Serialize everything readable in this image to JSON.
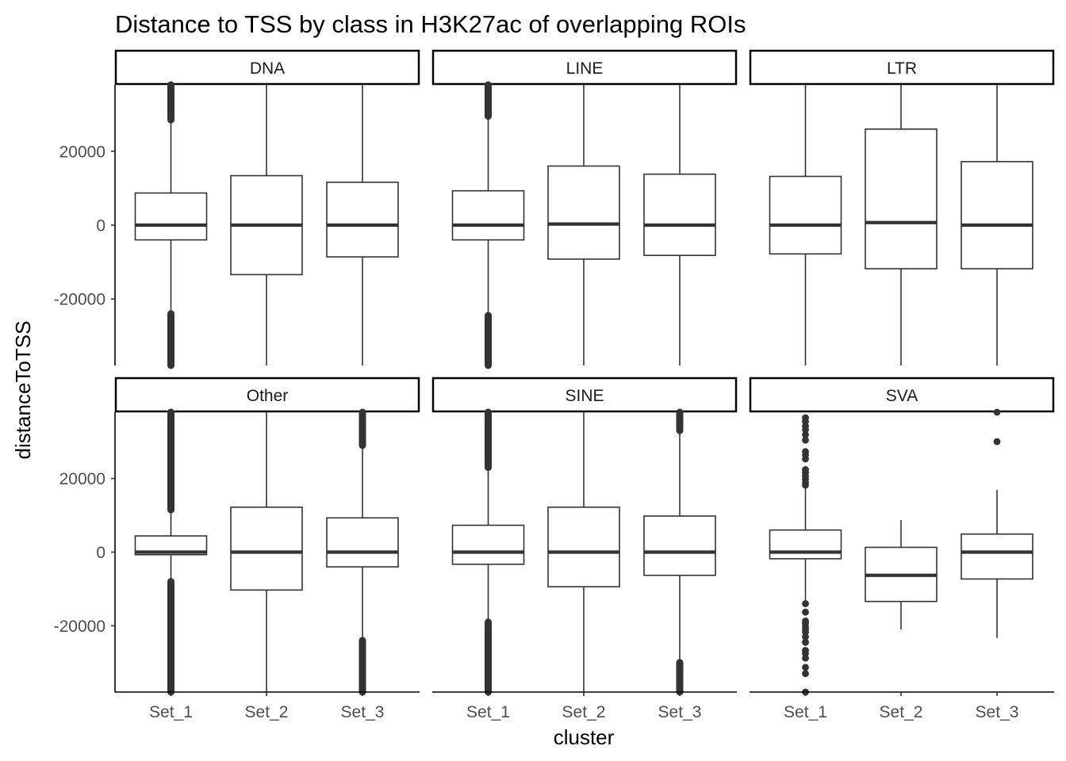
{
  "chart_data": {
    "type": "boxplot",
    "title": "Distance to TSS by class in H3K27ac of overlapping ROIs",
    "xlabel": "cluster",
    "ylabel": "distanceToTSS",
    "categories": [
      "Set_1",
      "Set_2",
      "Set_3"
    ],
    "ylim": [
      -38000,
      38000
    ],
    "yticks": [
      -20000,
      0,
      20000
    ],
    "ytick_labels": [
      "-20000",
      "0",
      "20000"
    ],
    "layout": "2 rows x 3 facets",
    "colors": {
      "box_line": "#333333",
      "outlier": "#333333",
      "strip_border": "#000000",
      "axis": "#000000"
    },
    "facets": [
      {
        "name": "DNA",
        "boxes": [
          {
            "cluster": "Set_1",
            "q1": -4000,
            "median": 0,
            "q3": 8700,
            "whisker_low": -24000,
            "whisker_high": 28500,
            "outlier_bands": [
              [
                -38000,
                -24000
              ],
              [
                28500,
                38000
              ]
            ],
            "outliers": []
          },
          {
            "cluster": "Set_2",
            "q1": -13400,
            "median": 0,
            "q3": 13400,
            "whisker_low": -38000,
            "whisker_high": 38000,
            "outlier_bands": [],
            "outliers": []
          },
          {
            "cluster": "Set_3",
            "q1": -8600,
            "median": 0,
            "q3": 11600,
            "whisker_low": -38000,
            "whisker_high": 38000,
            "outlier_bands": [],
            "outliers": []
          }
        ]
      },
      {
        "name": "LINE",
        "boxes": [
          {
            "cluster": "Set_1",
            "q1": -4000,
            "median": 0,
            "q3": 9300,
            "whisker_low": -24500,
            "whisker_high": 29500,
            "outlier_bands": [
              [
                -38000,
                -24500
              ],
              [
                29500,
                38000
              ]
            ],
            "outliers": []
          },
          {
            "cluster": "Set_2",
            "q1": -9200,
            "median": 300,
            "q3": 16000,
            "whisker_low": -38000,
            "whisker_high": 38000,
            "outlier_bands": [],
            "outliers": []
          },
          {
            "cluster": "Set_3",
            "q1": -8200,
            "median": 0,
            "q3": 13800,
            "whisker_low": -38000,
            "whisker_high": 38000,
            "outlier_bands": [],
            "outliers": []
          }
        ]
      },
      {
        "name": "LTR",
        "boxes": [
          {
            "cluster": "Set_1",
            "q1": -7800,
            "median": 0,
            "q3": 13200,
            "whisker_low": -38000,
            "whisker_high": 38000,
            "outlier_bands": [],
            "outliers": []
          },
          {
            "cluster": "Set_2",
            "q1": -11800,
            "median": 700,
            "q3": 26000,
            "whisker_low": -38000,
            "whisker_high": 38000,
            "outlier_bands": [],
            "outliers": []
          },
          {
            "cluster": "Set_3",
            "q1": -11800,
            "median": 0,
            "q3": 17200,
            "whisker_low": -38000,
            "whisker_high": 38000,
            "outlier_bands": [],
            "outliers": []
          }
        ]
      },
      {
        "name": "Other",
        "boxes": [
          {
            "cluster": "Set_1",
            "q1": -700,
            "median": 0,
            "q3": 4400,
            "whisker_low": -8000,
            "whisker_high": 11500,
            "outlier_bands": [
              [
                -38000,
                -8000
              ],
              [
                11500,
                38000
              ]
            ],
            "outliers": []
          },
          {
            "cluster": "Set_2",
            "q1": -10300,
            "median": 0,
            "q3": 12200,
            "whisker_low": -38000,
            "whisker_high": 38000,
            "outlier_bands": [],
            "outliers": []
          },
          {
            "cluster": "Set_3",
            "q1": -4000,
            "median": 0,
            "q3": 9300,
            "whisker_low": -24000,
            "whisker_high": 29000,
            "outlier_bands": [
              [
                -38000,
                -24000
              ],
              [
                29000,
                38000
              ]
            ],
            "outliers": []
          }
        ]
      },
      {
        "name": "SINE",
        "boxes": [
          {
            "cluster": "Set_1",
            "q1": -3300,
            "median": 0,
            "q3": 7300,
            "whisker_low": -19000,
            "whisker_high": 23000,
            "outlier_bands": [
              [
                -38000,
                -19000
              ],
              [
                23000,
                38000
              ]
            ],
            "outliers": []
          },
          {
            "cluster": "Set_2",
            "q1": -9400,
            "median": 0,
            "q3": 12200,
            "whisker_low": -38000,
            "whisker_high": 38000,
            "outlier_bands": [],
            "outliers": []
          },
          {
            "cluster": "Set_3",
            "q1": -6300,
            "median": 0,
            "q3": 9800,
            "whisker_low": -30000,
            "whisker_high": 33000,
            "outlier_bands": [
              [
                -38000,
                -30000
              ],
              [
                33000,
                38000
              ]
            ],
            "outliers": []
          }
        ]
      },
      {
        "name": "SVA",
        "boxes": [
          {
            "cluster": "Set_1",
            "q1": -1800,
            "median": 0,
            "q3": 6000,
            "whisker_low": -13500,
            "whisker_high": 17500,
            "outlier_bands": [],
            "outliers": [
              -38000,
              -33000,
              -31300,
              -28800,
              -27500,
              -26700,
              -24500,
              -23000,
              -21700,
              -21000,
              -20200,
              -19300,
              -18700,
              -16300,
              -14000,
              18200,
              19000,
              19900,
              20700,
              21600,
              22400,
              25300,
              26400,
              27300,
              30400,
              31900,
              33300,
              34200,
              35500,
              36500
            ]
          },
          {
            "cluster": "Set_2",
            "q1": -13400,
            "median": -6300,
            "q3": 1300,
            "whisker_low": -21000,
            "whisker_high": 8700,
            "outlier_bands": [],
            "outliers": []
          },
          {
            "cluster": "Set_3",
            "q1": -7300,
            "median": 0,
            "q3": 4900,
            "whisker_low": -23300,
            "whisker_high": 16900,
            "outlier_bands": [],
            "outliers": [
              30000,
              38000
            ]
          }
        ]
      }
    ]
  }
}
